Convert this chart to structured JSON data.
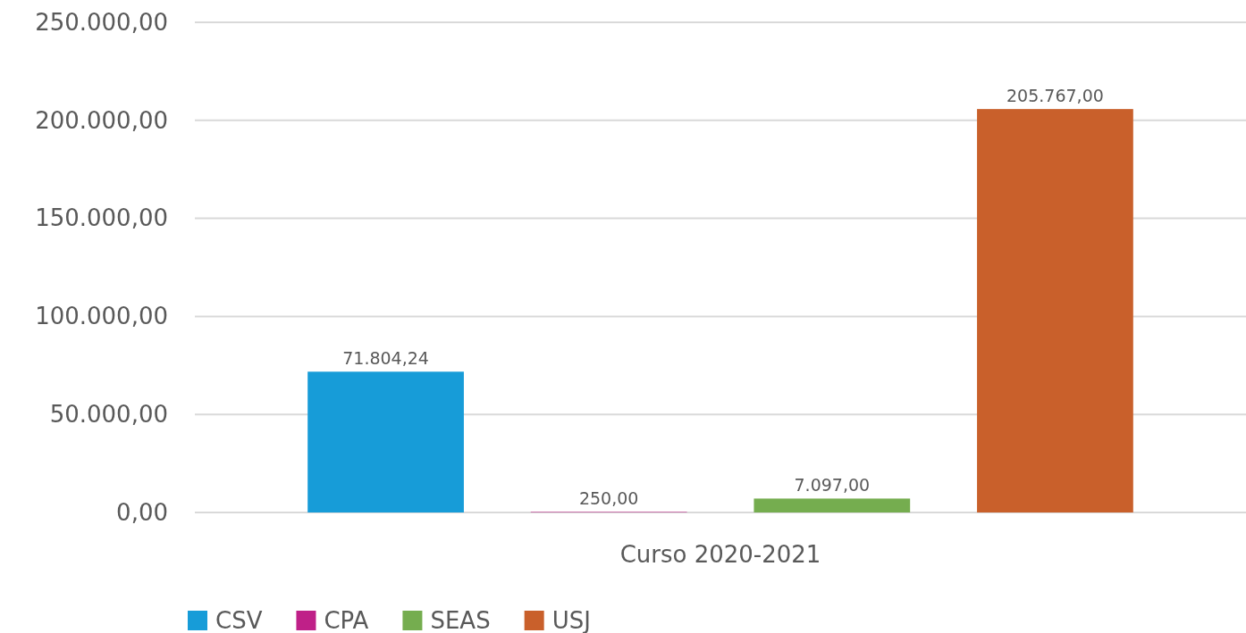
{
  "chart_data": {
    "type": "bar",
    "categories": [
      "Curso 2020-2021"
    ],
    "series": [
      {
        "name": "CSV",
        "color": "#179cd8",
        "values": [
          71804.24
        ],
        "value_labels": [
          "71.804,24"
        ]
      },
      {
        "name": "CPA",
        "color": "#bf2088",
        "values": [
          250
        ],
        "value_labels": [
          "250,00"
        ]
      },
      {
        "name": "SEAS",
        "color": "#75ad4f",
        "values": [
          7097
        ],
        "value_labels": [
          "7.097,00"
        ]
      },
      {
        "name": "USJ",
        "color": "#c9602b",
        "values": [
          205767
        ],
        "value_labels": [
          "205.767,00"
        ]
      }
    ],
    "ylim": [
      0,
      250000
    ],
    "yticks": [
      {
        "value": 0,
        "label": "0,00"
      },
      {
        "value": 50000,
        "label": "50.000,00"
      },
      {
        "value": 100000,
        "label": "100.000,00"
      },
      {
        "value": 150000,
        "label": "150.000,00"
      },
      {
        "value": 200000,
        "label": "200.000,00"
      },
      {
        "value": 250000,
        "label": "250.000,00"
      }
    ],
    "grid": "y",
    "legend": "bottom left"
  }
}
